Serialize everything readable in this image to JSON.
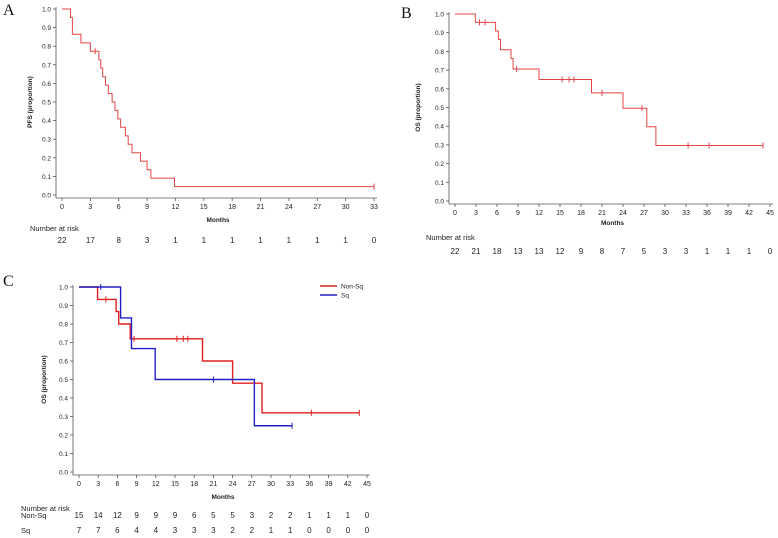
{
  "panels": [
    {
      "letter": "A",
      "chart_data": {
        "type": "line",
        "subtype": "kaplan-meier",
        "xlabel": "Months",
        "ylabel": "PFS (proportion)",
        "xlim": [
          0,
          33
        ],
        "ylim": [
          0.0,
          1.0
        ],
        "xticks": [
          0,
          3,
          6,
          9,
          12,
          15,
          18,
          21,
          24,
          27,
          30,
          33
        ],
        "yticks": [
          "0.0",
          "0.1",
          "0.2",
          "0.3",
          "0.4",
          "0.5",
          "0.6",
          "0.7",
          "0.8",
          "0.9",
          "1.0"
        ],
        "grid": false,
        "series": [
          {
            "color": "#e04646",
            "steps": [
              [
                0,
                1.0
              ],
              [
                0.9,
                0.955
              ],
              [
                1.1,
                0.864
              ],
              [
                2.0,
                0.818
              ],
              [
                3.0,
                0.773
              ],
              [
                3.9,
                0.727
              ],
              [
                4.1,
                0.682
              ],
              [
                4.3,
                0.636
              ],
              [
                4.6,
                0.591
              ],
              [
                4.9,
                0.545
              ],
              [
                5.3,
                0.5
              ],
              [
                5.6,
                0.455
              ],
              [
                5.9,
                0.409
              ],
              [
                6.2,
                0.364
              ],
              [
                6.7,
                0.318
              ],
              [
                7.0,
                0.273
              ],
              [
                7.4,
                0.227
              ],
              [
                8.3,
                0.182
              ],
              [
                9.0,
                0.136
              ],
              [
                9.4,
                0.091
              ],
              [
                11.9,
                0.045
              ],
              [
                33,
                0.045
              ]
            ],
            "censored": [
              [
                3.5,
                0.773
              ],
              [
                33,
                0.045
              ]
            ]
          }
        ]
      },
      "risk_table": {
        "title": "Number at risk",
        "rows": [
          {
            "label": "",
            "values": [
              "22",
              "17",
              "8",
              "3",
              "1",
              "1",
              "1",
              "1",
              "1",
              "1",
              "1",
              "0"
            ]
          }
        ]
      }
    },
    {
      "letter": "B",
      "chart_data": {
        "type": "line",
        "subtype": "kaplan-meier",
        "xlabel": "Months",
        "ylabel": "OS (proportion)",
        "xlim": [
          0,
          45
        ],
        "ylim": [
          0.0,
          1.0
        ],
        "xticks": [
          0,
          3,
          6,
          9,
          12,
          15,
          18,
          21,
          24,
          27,
          30,
          33,
          36,
          39,
          42,
          45
        ],
        "yticks": [
          "0.0",
          "0.1",
          "0.2",
          "0.3",
          "0.4",
          "0.5",
          "0.6",
          "0.7",
          "0.8",
          "0.9",
          "1.0"
        ],
        "grid": false,
        "series": [
          {
            "color": "#e04646",
            "steps": [
              [
                0,
                1.0
              ],
              [
                2.9,
                0.955
              ],
              [
                5.8,
                0.909
              ],
              [
                6.2,
                0.864
              ],
              [
                6.5,
                0.809
              ],
              [
                8.0,
                0.762
              ],
              [
                8.3,
                0.706
              ],
              [
                12.0,
                0.65
              ],
              [
                19.5,
                0.578
              ],
              [
                24.0,
                0.496
              ],
              [
                27.4,
                0.397
              ],
              [
                28.7,
                0.297
              ],
              [
                44,
                0.297
              ]
            ],
            "censored": [
              [
                3.5,
                0.955
              ],
              [
                4.3,
                0.955
              ],
              [
                8.8,
                0.706
              ],
              [
                15.3,
                0.65
              ],
              [
                16.3,
                0.65
              ],
              [
                17.0,
                0.65
              ],
              [
                21.0,
                0.578
              ],
              [
                26.7,
                0.496
              ],
              [
                33.3,
                0.297
              ],
              [
                36.3,
                0.297
              ],
              [
                44,
                0.297
              ]
            ]
          }
        ]
      },
      "risk_table": {
        "title": "Number at risk",
        "rows": [
          {
            "label": "",
            "values": [
              "22",
              "21",
              "18",
              "13",
              "13",
              "12",
              "9",
              "8",
              "7",
              "5",
              "3",
              "3",
              "1",
              "1",
              "1",
              "0"
            ]
          }
        ]
      }
    },
    {
      "letter": "C",
      "chart_data": {
        "type": "line",
        "subtype": "kaplan-meier",
        "xlabel": "Months",
        "ylabel": "OS (proportion)",
        "xlim": [
          0,
          45
        ],
        "ylim": [
          0.0,
          1.0
        ],
        "xticks": [
          0,
          3,
          6,
          9,
          12,
          15,
          18,
          21,
          24,
          27,
          30,
          33,
          36,
          39,
          42,
          45
        ],
        "yticks": [
          "0.0",
          "0.1",
          "0.2",
          "0.3",
          "0.4",
          "0.5",
          "0.6",
          "0.7",
          "0.8",
          "0.9",
          "1.0"
        ],
        "grid": false,
        "legend": "top-right",
        "series": [
          {
            "name": "Non-Sq",
            "color": "#e02020",
            "steps": [
              [
                0,
                1.0
              ],
              [
                2.9,
                0.933
              ],
              [
                5.8,
                0.867
              ],
              [
                6.2,
                0.8
              ],
              [
                8.0,
                0.72
              ],
              [
                19.3,
                0.6
              ],
              [
                24.0,
                0.48
              ],
              [
                28.6,
                0.32
              ],
              [
                43.8,
                0.32
              ]
            ],
            "censored": [
              [
                4.2,
                0.933
              ],
              [
                8.6,
                0.72
              ],
              [
                15.3,
                0.72
              ],
              [
                16.3,
                0.72
              ],
              [
                17.0,
                0.72
              ],
              [
                36.3,
                0.32
              ],
              [
                43.8,
                0.32
              ]
            ]
          },
          {
            "name": "Sq",
            "color": "#2020c8",
            "steps": [
              [
                0,
                1.0
              ],
              [
                6.5,
                0.833
              ],
              [
                8.2,
                0.667
              ],
              [
                11.9,
                0.5
              ],
              [
                27.4,
                0.25
              ],
              [
                33.3,
                0.25
              ]
            ],
            "censored": [
              [
                3.4,
                1.0
              ],
              [
                21.0,
                0.5
              ],
              [
                33.3,
                0.25
              ]
            ]
          }
        ]
      },
      "risk_table": {
        "title": "Number at risk",
        "rows": [
          {
            "label": "Non-Sq",
            "values": [
              "15",
              "14",
              "12",
              "9",
              "9",
              "9",
              "6",
              "5",
              "5",
              "3",
              "2",
              "2",
              "1",
              "1",
              "1",
              "0"
            ]
          },
          {
            "label": "Sq",
            "values": [
              "7",
              "7",
              "6",
              "4",
              "4",
              "3",
              "3",
              "3",
              "2",
              "2",
              "1",
              "1",
              "0",
              "0",
              "0",
              "0"
            ]
          }
        ]
      }
    }
  ]
}
